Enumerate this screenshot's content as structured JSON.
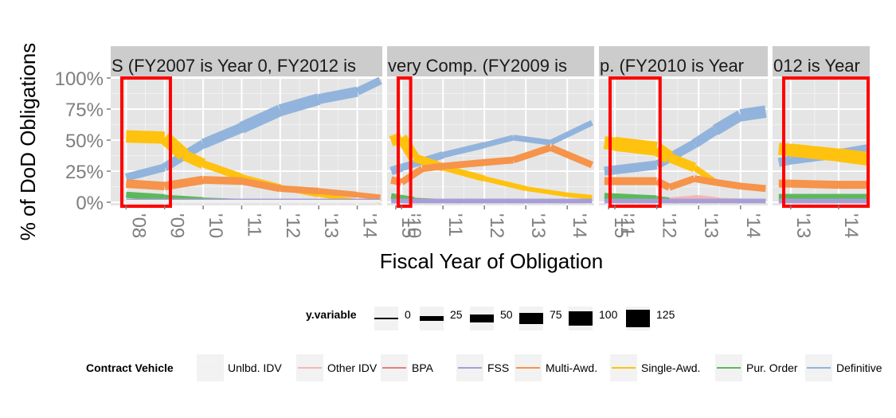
{
  "chart_data": {
    "type": "line",
    "xlabel": "Fiscal Year of Obligation",
    "ylabel": "% of DoD Obligations",
    "y_ticks": [
      "0%",
      "25%",
      "50%",
      "75%",
      "100%"
    ],
    "ylim": [
      0,
      1
    ],
    "grid": true,
    "legend_placement": "bottom",
    "colors": {
      "panel_bg": "#e5e5e5",
      "strip_bg": "#cccccc",
      "grid": "#ffffff",
      "highlight_box": "#ff0000",
      "tick_label": "#7f7f7f"
    },
    "panels": [
      {
        "strip_label": "S (FY2007 is Year 0, FY2012 is",
        "xlim": [
          2007.6,
          2014.65
        ],
        "x_ticks": [
          2008,
          2009,
          2010,
          2011,
          2012,
          2013,
          2014,
          2015
        ],
        "x_tick_labels": [
          "'08",
          "'09",
          "'10",
          "'11",
          "'12",
          "'13",
          "'14",
          "'15"
        ],
        "highlight": [
          2007.6,
          2009.15
        ],
        "series": [
          {
            "key": "Definitive",
            "x": [
              2008,
              2009,
              2010,
              2011,
              2012,
              2013,
              2014,
              2014.6
            ],
            "values": [
              0.2,
              0.28,
              0.47,
              0.6,
              0.74,
              0.83,
              0.89,
              0.98
            ],
            "widths": [
              40,
              60,
              60,
              80,
              90,
              80,
              60,
              40
            ]
          },
          {
            "key": "Single-Awd.",
            "x": [
              2008,
              2009,
              2009.5,
              2010,
              2011,
              2012,
              2013,
              2014,
              2014.6
            ],
            "values": [
              0.53,
              0.52,
              0.38,
              0.31,
              0.2,
              0.12,
              0.06,
              0.01,
              0.0
            ],
            "widths": [
              80,
              100,
              100,
              50,
              40,
              30,
              20,
              10,
              5
            ]
          },
          {
            "key": "Multi-Awd.",
            "x": [
              2008,
              2009,
              2010,
              2011,
              2012,
              2013,
              2014,
              2014.6
            ],
            "values": [
              0.15,
              0.13,
              0.18,
              0.17,
              0.11,
              0.09,
              0.06,
              0.04
            ],
            "widths": [
              50,
              60,
              50,
              45,
              40,
              35,
              30,
              25
            ]
          },
          {
            "key": "Pur. Order",
            "x": [
              2008,
              2009,
              2010,
              2011,
              2012,
              2013,
              2014,
              2014.6
            ],
            "values": [
              0.06,
              0.04,
              0.02,
              0.01,
              0.01,
              0.01,
              0.01,
              0.01
            ],
            "widths": [
              40,
              30,
              20,
              15,
              10,
              10,
              10,
              10
            ]
          },
          {
            "key": "FSS",
            "x": [
              2008,
              2010,
              2012,
              2014,
              2014.6
            ],
            "values": [
              0.01,
              0.01,
              0.01,
              0.01,
              0.01
            ],
            "widths": [
              20,
              20,
              20,
              20,
              20
            ]
          },
          {
            "key": "Unlbd. IDV",
            "x": [
              2008,
              2014.6
            ],
            "values": [
              0.005,
              0.005
            ],
            "widths": [
              10,
              10
            ]
          }
        ]
      },
      {
        "strip_label": "very Comp. (FY2009 is",
        "xlim": [
          2009.65,
          2014.65
        ],
        "x_ticks": [
          2010,
          2011,
          2012,
          2013,
          2014,
          2015
        ],
        "x_tick_labels": [
          "'10",
          "'11",
          "'12",
          "'13",
          "'14",
          "'15"
        ],
        "highlight": [
          2009.65,
          2010.22
        ],
        "series": [
          {
            "key": "Definitive",
            "x": [
              2009.75,
              2010,
              2011,
              2012,
              2012.7,
              2013.6,
              2014.6
            ],
            "values": [
              0.25,
              0.28,
              0.38,
              0.46,
              0.52,
              0.48,
              0.64
            ],
            "widths": [
              60,
              50,
              40,
              30,
              30,
              30,
              30
            ]
          },
          {
            "key": "Single-Awd.",
            "x": [
              2009.75,
              2010,
              2010.3,
              2011,
              2012,
              2013,
              2014,
              2014.6
            ],
            "values": [
              0.49,
              0.52,
              0.36,
              0.28,
              0.19,
              0.11,
              0.06,
              0.04
            ],
            "widths": [
              60,
              90,
              70,
              40,
              30,
              20,
              20,
              20
            ]
          },
          {
            "key": "Multi-Awd.",
            "x": [
              2009.75,
              2010,
              2010.5,
              2011,
              2012,
              2012.7,
              2013.6,
              2014.6
            ],
            "values": [
              0.18,
              0.16,
              0.27,
              0.29,
              0.32,
              0.34,
              0.44,
              0.3
            ],
            "widths": [
              50,
              40,
              40,
              40,
              40,
              40,
              40,
              40
            ]
          },
          {
            "key": "Pur. Order",
            "x": [
              2009.75,
              2010.3,
              2011,
              2012,
              2013,
              2014.6
            ],
            "values": [
              0.05,
              0.02,
              0.01,
              0.01,
              0.01,
              0.01
            ],
            "widths": [
              40,
              20,
              10,
              10,
              10,
              10
            ]
          },
          {
            "key": "FSS",
            "x": [
              2009.75,
              2014.6
            ],
            "values": [
              0.01,
              0.01
            ],
            "widths": [
              20,
              20
            ]
          }
        ]
      },
      {
        "strip_label": "p. (FY2010 is Year",
        "xlim": [
          2010.62,
          2014.65
        ],
        "x_ticks": [
          2011,
          2012,
          2013,
          2014
        ],
        "x_tick_labels": [
          "'11",
          "'12",
          "'13",
          "'14"
        ],
        "highlight": [
          2010.62,
          2012.08
        ],
        "series": [
          {
            "key": "Definitive",
            "x": [
              2010.75,
              2011,
              2012,
              2012.9,
              2013.4,
              2014.0,
              2014.6
            ],
            "values": [
              0.25,
              0.26,
              0.3,
              0.47,
              0.58,
              0.7,
              0.73
            ],
            "widths": [
              60,
              60,
              60,
              60,
              70,
              90,
              90
            ]
          },
          {
            "key": "Single-Awd.",
            "x": [
              2010.75,
              2011,
              2012,
              2012.3,
              2012.9,
              2013.4,
              2014,
              2014.6
            ],
            "values": [
              0.48,
              0.47,
              0.43,
              0.36,
              0.28,
              0.16,
              0.13,
              0.11
            ],
            "widths": [
              90,
              100,
              110,
              90,
              40,
              30,
              25,
              25
            ]
          },
          {
            "key": "Multi-Awd.",
            "x": [
              2010.75,
              2011,
              2012,
              2012.3,
              2012.9,
              2013.4,
              2014,
              2014.6
            ],
            "values": [
              0.17,
              0.17,
              0.17,
              0.12,
              0.19,
              0.16,
              0.13,
              0.11
            ],
            "widths": [
              50,
              50,
              50,
              40,
              40,
              40,
              40,
              40
            ]
          },
          {
            "key": "Pur. Order",
            "x": [
              2010.75,
              2012,
              2012.5,
              2014.6
            ],
            "values": [
              0.05,
              0.03,
              0.01,
              0.01
            ],
            "widths": [
              40,
              30,
              20,
              10
            ]
          },
          {
            "key": "Other IDV",
            "x": [
              2012.3,
              2013,
              2013.5,
              2014.6
            ],
            "values": [
              0.02,
              0.04,
              0.02,
              0.01
            ],
            "widths": [
              20,
              20,
              15,
              10
            ]
          },
          {
            "key": "FSS",
            "x": [
              2010.75,
              2014.6
            ],
            "values": [
              0.01,
              0.01
            ],
            "widths": [
              20,
              20
            ]
          }
        ]
      },
      {
        "strip_label": "012 is Year",
        "xlim": [
          2012.62,
          2014.65
        ],
        "x_ticks": [
          2013,
          2014
        ],
        "x_tick_labels": [
          "'13",
          "'14"
        ],
        "highlight": [
          2012.62,
          2014.65
        ],
        "series": [
          {
            "key": "Definitive",
            "x": [
              2012.75,
              2013,
              2014,
              2014.6
            ],
            "values": [
              0.32,
              0.34,
              0.39,
              0.43
            ],
            "widths": [
              60,
              60,
              60,
              60
            ]
          },
          {
            "key": "Single-Awd.",
            "x": [
              2012.75,
              2013,
              2014,
              2014.6
            ],
            "values": [
              0.43,
              0.42,
              0.38,
              0.35
            ],
            "widths": [
              90,
              90,
              100,
              100
            ]
          },
          {
            "key": "Multi-Awd.",
            "x": [
              2012.75,
              2013,
              2014,
              2014.6
            ],
            "values": [
              0.15,
              0.15,
              0.14,
              0.14
            ],
            "widths": [
              50,
              50,
              50,
              50
            ]
          },
          {
            "key": "Pur. Order",
            "x": [
              2012.75,
              2014.6
            ],
            "values": [
              0.04,
              0.04
            ],
            "widths": [
              40,
              40
            ]
          },
          {
            "key": "FSS",
            "x": [
              2012.75,
              2014.6
            ],
            "values": [
              0.01,
              0.01
            ],
            "widths": [
              20,
              20
            ]
          }
        ]
      }
    ],
    "size_legend": {
      "title": "y.variable",
      "items": [
        {
          "label": "0",
          "size": 0
        },
        {
          "label": "25",
          "size": 25
        },
        {
          "label": "50",
          "size": 50
        },
        {
          "label": "75",
          "size": 75
        },
        {
          "label": "100",
          "size": 100
        },
        {
          "label": "125",
          "size": 125
        }
      ]
    },
    "color_legend": {
      "title": "Contract Vehicle",
      "items": [
        {
          "key": "Unlbd. IDV",
          "label": "Unlbd. IDV",
          "color": "#f0f0f0"
        },
        {
          "key": "Other IDV",
          "label": "Other IDV",
          "color": "#f4b6b6"
        },
        {
          "key": "BPA",
          "label": "BPA",
          "color": "#e67e7e"
        },
        {
          "key": "FSS",
          "label": "FSS",
          "color": "#a89ed6"
        },
        {
          "key": "Multi-Awd.",
          "label": "Multi-Awd.",
          "color": "#f5944a"
        },
        {
          "key": "Single-Awd.",
          "label": "Single-Awd.",
          "color": "#ffc20e"
        },
        {
          "key": "Pur. Order",
          "label": "Pur. Order",
          "color": "#5cb85c"
        },
        {
          "key": "Definitive",
          "label": "Definitive",
          "color": "#92b4dc"
        }
      ]
    }
  }
}
